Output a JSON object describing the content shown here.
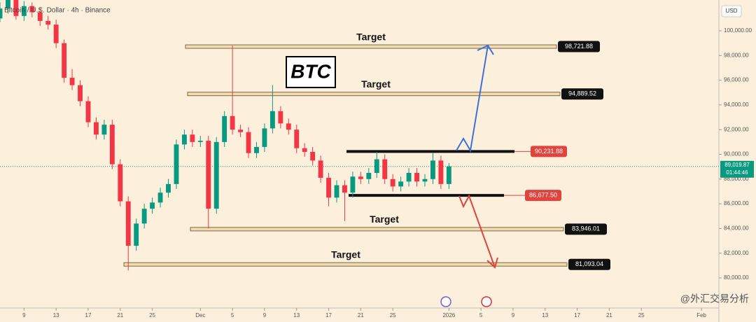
{
  "chart_data": {
    "type": "candlestick",
    "title": "Bitcoin / U.S. Dollar · 4h · Binance",
    "currency": "USD",
    "badge": "BTC",
    "up_color": "#089981",
    "down_color": "#f23645",
    "x": [
      5,
      6,
      7,
      8,
      9,
      10,
      11,
      12,
      13,
      14,
      15,
      16,
      17,
      18,
      19,
      20,
      21,
      22,
      23,
      24,
      25,
      26,
      27,
      28,
      29,
      30,
      31,
      32,
      33,
      34,
      35,
      36,
      37,
      38,
      39,
      40,
      41,
      42,
      43,
      44,
      45,
      46,
      47,
      48,
      49,
      50,
      51,
      52,
      53,
      54,
      55,
      56,
      57,
      58,
      59,
      60,
      61
    ],
    "open": [
      101000,
      101800,
      102500,
      101200,
      102000,
      101500,
      100800,
      100500,
      99000,
      96200,
      95600,
      94300,
      92600,
      91600,
      92400,
      89200,
      86200,
      82600,
      84400,
      85600,
      86100,
      86900,
      87600,
      90800,
      91600,
      91000,
      91100,
      85600,
      91000,
      93100,
      92000,
      91800,
      90100,
      90600,
      92100,
      93500,
      92500,
      92000,
      90500,
      90200,
      89500,
      88100,
      86500,
      87500,
      86900,
      88200,
      88000,
      88500,
      89600,
      88000,
      87400,
      87800,
      88500,
      87800,
      88000,
      89500,
      87600
    ],
    "high": [
      102300,
      103000,
      102900,
      102400,
      102300,
      101900,
      101200,
      100900,
      99300,
      96900,
      96000,
      94700,
      93000,
      92800,
      92800,
      89600,
      86600,
      84800,
      86000,
      86500,
      87300,
      88000,
      91200,
      92000,
      92000,
      91500,
      91500,
      91400,
      93500,
      98800,
      92400,
      92200,
      91000,
      92500,
      95600,
      93900,
      92900,
      92400,
      90900,
      90600,
      89900,
      88500,
      87900,
      87900,
      88600,
      88600,
      88900,
      90200,
      90000,
      88400,
      88200,
      88900,
      88900,
      88400,
      90100,
      89900,
      89300
    ],
    "low": [
      100700,
      101400,
      100900,
      100800,
      101100,
      100400,
      100100,
      98600,
      95800,
      95200,
      93900,
      92200,
      91200,
      91200,
      88800,
      85800,
      80600,
      82200,
      84000,
      85200,
      85700,
      86500,
      87200,
      90400,
      90600,
      90600,
      84000,
      85200,
      90600,
      91600,
      91400,
      89700,
      89700,
      90200,
      91700,
      92100,
      91600,
      90100,
      89800,
      89100,
      87700,
      85800,
      86100,
      84600,
      86500,
      87600,
      87600,
      88100,
      87600,
      87000,
      87000,
      87400,
      87400,
      87400,
      87600,
      87200,
      87200
    ],
    "close": [
      101800,
      102500,
      101200,
      102000,
      101500,
      100800,
      100500,
      99000,
      96200,
      95600,
      94300,
      92600,
      91600,
      92400,
      89200,
      86200,
      82600,
      84400,
      85600,
      86100,
      86900,
      87600,
      90800,
      91600,
      91000,
      91100,
      85600,
      91000,
      93100,
      92000,
      91800,
      90100,
      90600,
      92100,
      93500,
      92500,
      92000,
      90500,
      90200,
      89500,
      88100,
      86500,
      87500,
      86900,
      88200,
      88000,
      88500,
      89600,
      88000,
      87400,
      87800,
      88500,
      87800,
      88000,
      89500,
      87600,
      89019.87
    ],
    "xlim": [
      5,
      94.5
    ],
    "xticks": [
      {
        "value": 8,
        "label": "9"
      },
      {
        "value": 12,
        "label": "13"
      },
      {
        "value": 16,
        "label": "17"
      },
      {
        "value": 20,
        "label": "21"
      },
      {
        "value": 24,
        "label": "25"
      },
      {
        "value": 30,
        "label": "Dec"
      },
      {
        "value": 34,
        "label": "5"
      },
      {
        "value": 38,
        "label": "9"
      },
      {
        "value": 42,
        "label": "13"
      },
      {
        "value": 46,
        "label": "17"
      },
      {
        "value": 50,
        "label": "21"
      },
      {
        "value": 54,
        "label": "25"
      },
      {
        "value": 61,
        "label": "2026"
      },
      {
        "value": 65,
        "label": "5"
      },
      {
        "value": 69,
        "label": "9"
      },
      {
        "value": 73,
        "label": "13"
      },
      {
        "value": 77,
        "label": "17"
      },
      {
        "value": 81,
        "label": "21"
      },
      {
        "value": 85,
        "label": "25"
      },
      {
        "value": 92.5,
        "label": "Feb"
      }
    ],
    "ylim": [
      77564,
      102493
    ],
    "yticks": [
      {
        "value": 80000,
        "label": "80,000.00"
      },
      {
        "value": 82000,
        "label": "82,000.00"
      },
      {
        "value": 84000,
        "label": "84,000.00"
      },
      {
        "value": 86000,
        "label": "86,000.00"
      },
      {
        "value": 88000,
        "label": "88,000.00"
      },
      {
        "value": 90000,
        "label": "90,000.00"
      },
      {
        "value": 92000,
        "label": "92,000.00"
      },
      {
        "value": 94000,
        "label": "94,000.00"
      },
      {
        "value": 96000,
        "label": "96,000.00"
      },
      {
        "value": 98000,
        "label": "98,000.00"
      },
      {
        "value": 100000,
        "label": "100,000.00"
      }
    ],
    "target_levels": [
      {
        "label": "Target",
        "value": 98721.88,
        "value_label": "98,721.88"
      },
      {
        "label": "Target",
        "value": 94889.52,
        "value_label": "94,889.52"
      },
      {
        "label": "Target",
        "value": 83946.01,
        "value_label": "83,946.01"
      },
      {
        "label": "Target",
        "value": 81093.04,
        "value_label": "81,093.04"
      }
    ],
    "range_levels": [
      {
        "value": 90231.88,
        "value_label": "90,231.88"
      },
      {
        "value": 86677.5,
        "value_label": "86,677.50"
      }
    ],
    "last_price": {
      "value": 89019.87,
      "label": "89,019.87",
      "countdown": "01:44:46"
    },
    "watermark": "@外汇交易分析"
  }
}
